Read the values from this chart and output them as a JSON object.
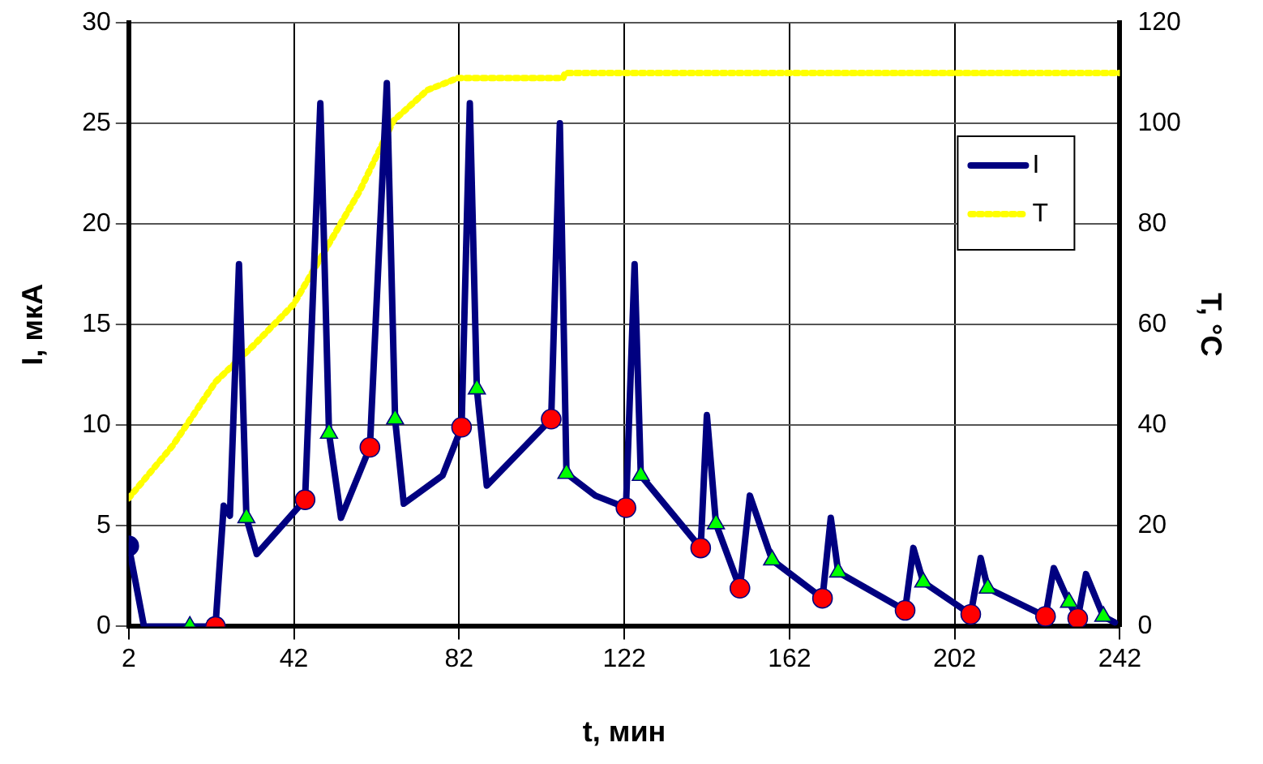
{
  "chart_data": {
    "type": "line",
    "xlabel": "t, мин",
    "ylabel": "I, мкА",
    "y2label": "T, °C",
    "xlim": [
      2,
      242
    ],
    "xticks": [
      2,
      42,
      82,
      122,
      162,
      202,
      242
    ],
    "ylim": [
      0,
      30
    ],
    "yticks": [
      0,
      5,
      10,
      15,
      20,
      25,
      30
    ],
    "y2lim": [
      0,
      120
    ],
    "y2ticks": [
      0,
      20,
      40,
      60,
      80,
      100,
      120
    ],
    "grid": true,
    "legend": "top right",
    "series": [
      {
        "name": "I",
        "color": "#000080",
        "marker": "none",
        "line_style": "solid",
        "x": [
          2,
          5.7,
          23,
          25,
          26.5,
          28.7,
          30.5,
          33,
          44.7,
          48.4,
          50.5,
          53.4,
          60.4,
          64.5,
          66.5,
          68.6,
          78,
          82.6,
          84.6,
          86.3,
          88.7,
          104.3,
          106.4,
          108,
          115,
          122.4,
          124.5,
          126,
          140.5,
          142,
          144.2,
          150,
          152.4,
          157.8,
          170,
          172,
          173.8,
          190,
          192,
          194.4,
          205.9,
          208.3,
          210,
          224,
          226,
          229.7,
          231.8,
          233.8,
          238,
          240.8
        ],
        "values": [
          4,
          0,
          0,
          6,
          5.5,
          18,
          5.4,
          3.6,
          6.3,
          26,
          9.6,
          5.4,
          8.9,
          27,
          10.3,
          6.1,
          7.5,
          9.9,
          26,
          11.8,
          7,
          10.3,
          25,
          7.6,
          6.5,
          5.9,
          18,
          7.5,
          3.9,
          10.5,
          5.1,
          1.9,
          6.5,
          3.3,
          1.4,
          5.4,
          2.7,
          0.8,
          3.9,
          2.2,
          0.6,
          3.4,
          1.9,
          0.5,
          2.9,
          1.2,
          0.4,
          2.6,
          0.5,
          0.2
        ]
      },
      {
        "name": "T",
        "axis": "y2",
        "color": "#ffff00",
        "marker": "none",
        "line_style": "dotted",
        "x": [
          2,
          12.7,
          23,
          32.4,
          41.9,
          57.9,
          66.1,
          74.3,
          81.7,
          107.2,
          107.6,
          242
        ],
        "values": [
          25.5,
          36,
          48.6,
          56,
          64,
          86.5,
          100.5,
          106.6,
          109,
          109,
          110,
          110
        ]
      },
      {
        "type": "scatter",
        "color": "#000080",
        "marker": "circle",
        "x": [
          2
        ],
        "values": [
          4
        ]
      },
      {
        "type": "scatter",
        "color": "#ff0000",
        "marker": "circle",
        "x": [
          23,
          44.7,
          60.4,
          82.6,
          104.3,
          122.4,
          140.5,
          150,
          170,
          190,
          205.9,
          224,
          231.8
        ],
        "values": [
          0,
          6.3,
          8.9,
          9.9,
          10.3,
          5.9,
          3.9,
          1.9,
          1.4,
          0.8,
          0.6,
          0.5,
          0.4
        ]
      },
      {
        "type": "scatter",
        "color": "#00ff00",
        "marker": "triangle",
        "x": [
          16.8,
          30.5,
          50.5,
          66.5,
          86.3,
          108,
          126,
          144.2,
          157.8,
          173.8,
          194.4,
          210,
          229.7,
          238
        ],
        "values": [
          0,
          5.4,
          9.6,
          10.3,
          11.8,
          7.6,
          7.5,
          5.1,
          3.3,
          2.7,
          2.2,
          1.9,
          1.2,
          0.5
        ]
      }
    ]
  }
}
